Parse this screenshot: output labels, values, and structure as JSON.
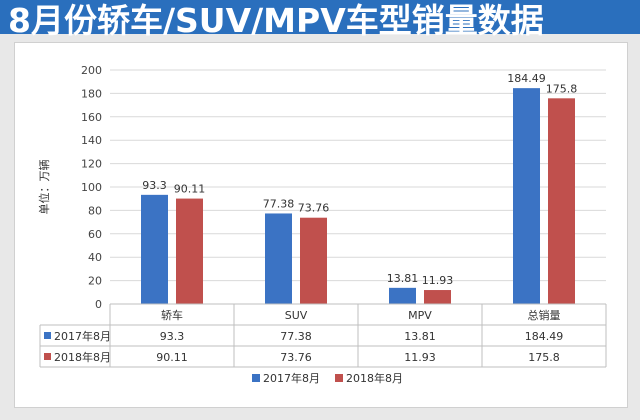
{
  "header": {
    "title": "8月份轿车/SUV/MPV车型销量数据"
  },
  "chart_data": {
    "type": "bar",
    "ylabel": "单位：万辆",
    "ylim": [
      0,
      200
    ],
    "yticks": [
      0,
      20,
      40,
      60,
      80,
      100,
      120,
      140,
      160,
      180,
      200
    ],
    "grid": true,
    "legend": "bottom",
    "categories": [
      "轿车",
      "SUV",
      "MPV",
      "总销量"
    ],
    "series": [
      {
        "name": "2017年8月",
        "color": "#3b73c4",
        "values": [
          93.3,
          77.38,
          13.81,
          184.49
        ],
        "labels": [
          "93.3",
          "77.38",
          "13.81",
          "184.49"
        ]
      },
      {
        "name": "2018年8月",
        "color": "#c0504d",
        "values": [
          90.11,
          73.76,
          11.93,
          175.8
        ],
        "labels": [
          "90.11",
          "73.76",
          "11.93",
          "175.8"
        ]
      }
    ]
  }
}
